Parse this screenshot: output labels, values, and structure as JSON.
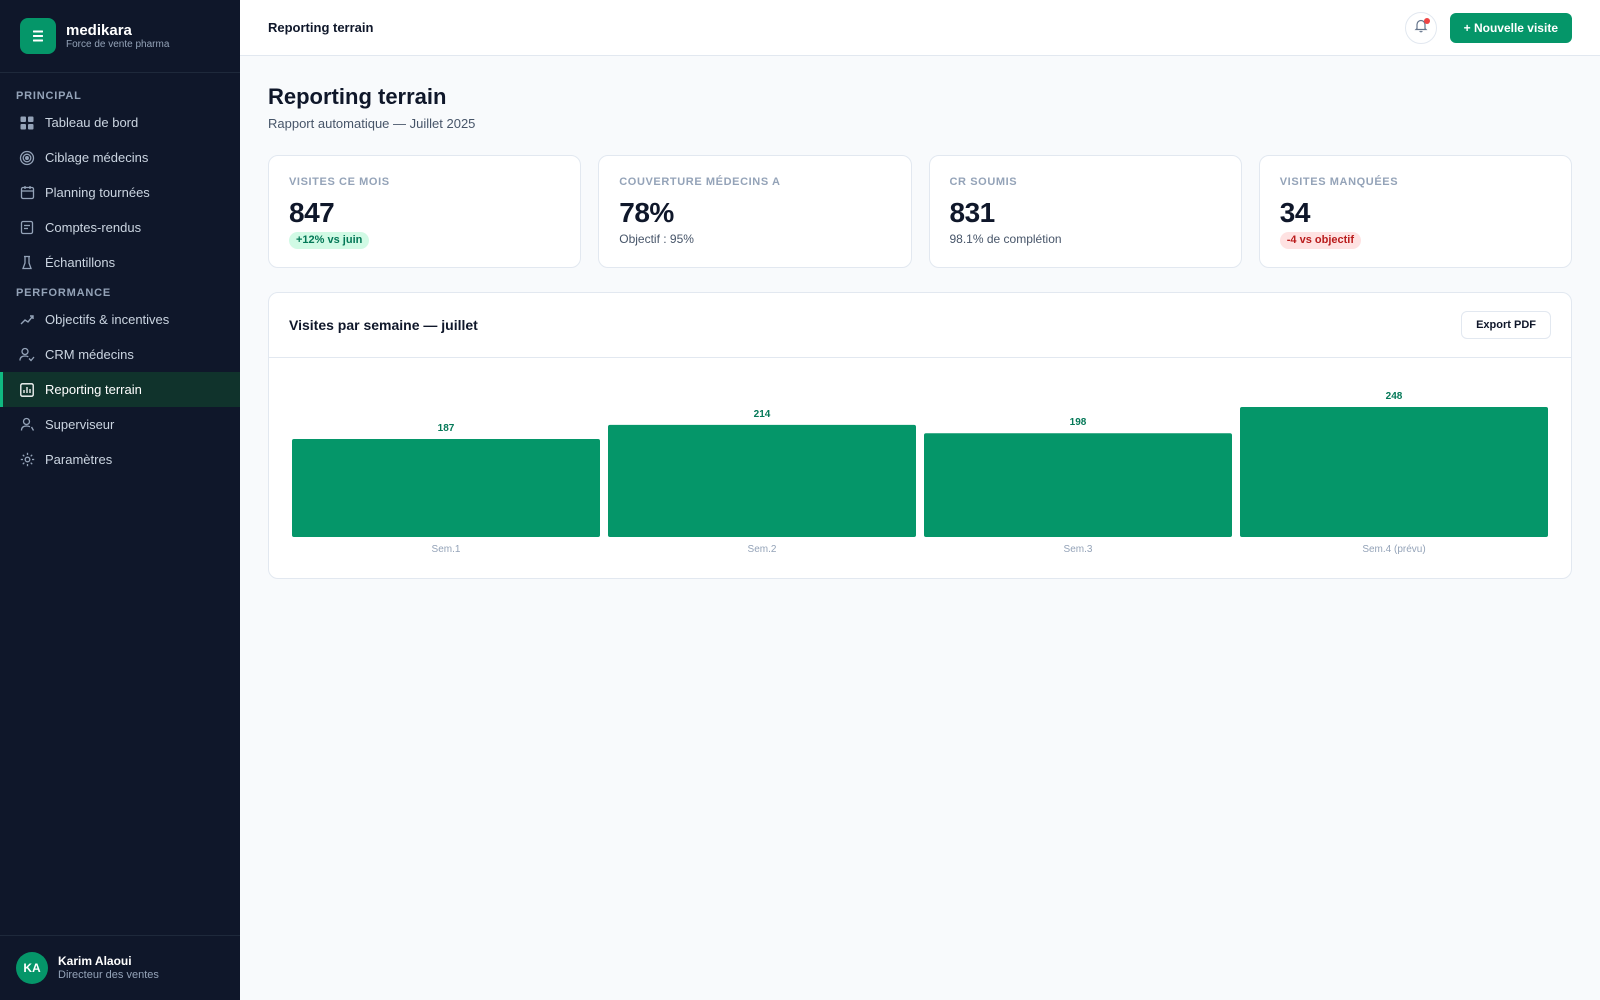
{
  "brand": {
    "name": "medikara",
    "subtitle": "Force de vente pharma",
    "logo_icon": "list-icon"
  },
  "sidebar": {
    "sections": [
      {
        "title": "PRINCIPAL",
        "items": [
          {
            "label": "Tableau de bord",
            "icon": "grid-icon"
          },
          {
            "label": "Ciblage médecins",
            "icon": "target-icon"
          },
          {
            "label": "Planning tournées",
            "icon": "calendar-icon"
          },
          {
            "label": "Comptes-rendus",
            "icon": "document-icon"
          },
          {
            "label": "Échantillons",
            "icon": "flask-icon"
          }
        ]
      },
      {
        "title": "PERFORMANCE",
        "items": [
          {
            "label": "Objectifs & incentives",
            "icon": "trend-icon"
          },
          {
            "label": "CRM médecins",
            "icon": "user-check-icon"
          },
          {
            "label": "Reporting terrain",
            "icon": "report-icon",
            "active": true
          },
          {
            "label": "Superviseur",
            "icon": "user-icon"
          },
          {
            "label": "Paramètres",
            "icon": "gear-icon"
          }
        ]
      }
    ]
  },
  "user": {
    "initials": "KA",
    "name": "Karim Alaoui",
    "role": "Directeur des ventes"
  },
  "topbar": {
    "title": "Reporting terrain",
    "new_visit_label": "+ Nouvelle visite"
  },
  "page": {
    "title": "Reporting terrain",
    "subtitle": "Rapport automatique — Juillet 2025"
  },
  "kpis": [
    {
      "label": "VISITES CE MOIS",
      "value": "847",
      "badge": "+12% vs juin",
      "badge_type": "good"
    },
    {
      "label": "COUVERTURE MÉDECINS A",
      "value": "78%",
      "note": "Objectif : 95%"
    },
    {
      "label": "CR SOUMIS",
      "value": "831",
      "note": "98.1% de complétion"
    },
    {
      "label": "VISITES MANQUÉES",
      "value": "34",
      "badge": "-4 vs objectif",
      "badge_type": "bad"
    }
  ],
  "chart_card": {
    "title": "Visites par semaine — juillet",
    "export_label": "Export PDF"
  },
  "colors": {
    "accent": "#059669",
    "sidebar_bg": "#0f172a",
    "bar": "#059669",
    "bar_label": "#047857"
  },
  "chart_data": {
    "type": "bar",
    "categories": [
      "Sem.1",
      "Sem.2",
      "Sem.3",
      "Sem.4 (prévu)"
    ],
    "values": [
      187,
      214,
      198,
      248
    ],
    "title": "Visites par semaine — juillet",
    "xlabel": "",
    "ylabel": "",
    "ylim": [
      0,
      248
    ],
    "grid": false,
    "data_labels": true
  }
}
